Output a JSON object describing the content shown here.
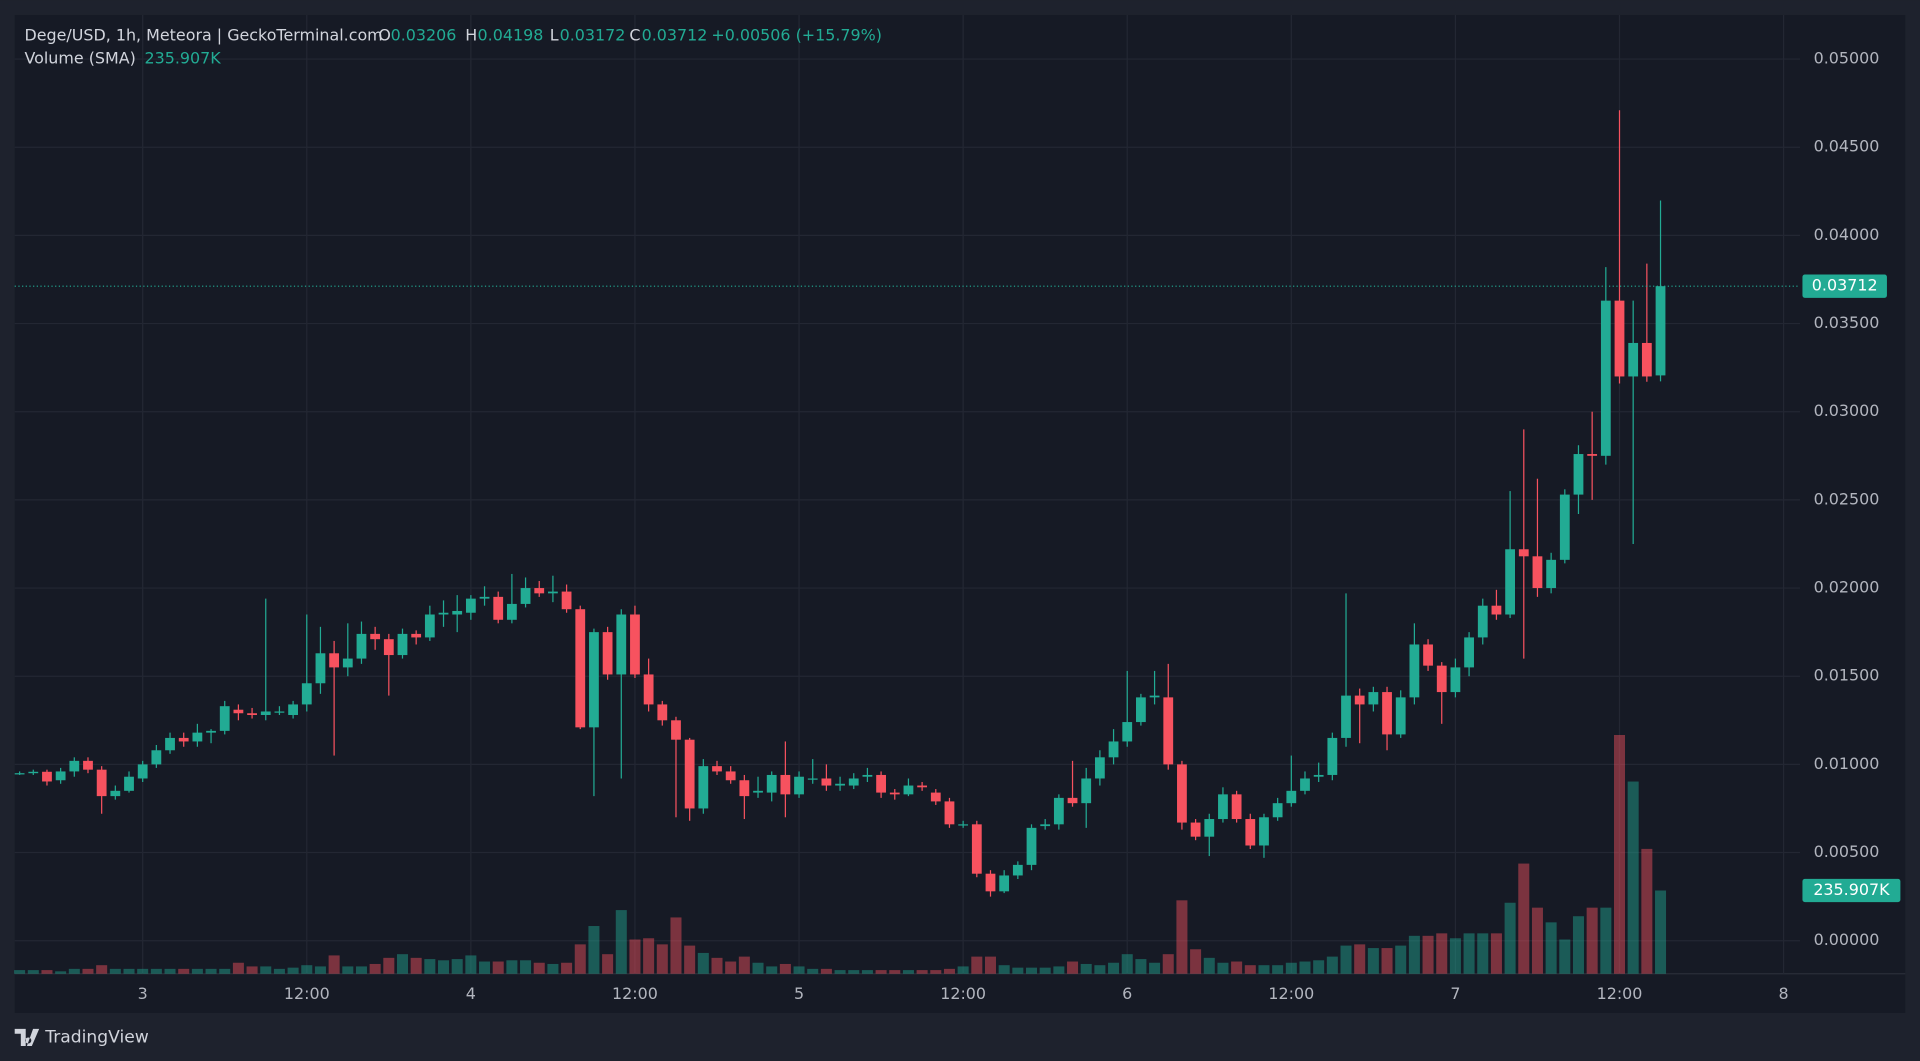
{
  "chart_data": {
    "type": "candlestick",
    "title": "Dege/USD, 1h, Meteora | GeckoTerminal.com",
    "open_letter": "O",
    "high_letter": "H",
    "low_letter": "L",
    "close_letter": "C",
    "change_label": "+0.00506 (+15.79%)",
    "volume_title": "Volume (SMA)",
    "last_volume_label": "235.907K",
    "brand": "TradingView",
    "up_color": "#22ab94",
    "down_color": "#f7525f",
    "grid": true,
    "ylim": [
      -0.001875,
      0.0525
    ],
    "yticks": [
      {
        "value": 0,
        "label": "0.00000"
      },
      {
        "value": 0.005,
        "label": "0.00500"
      },
      {
        "value": 0.01,
        "label": "0.01000"
      },
      {
        "value": 0.015,
        "label": "0.01500"
      },
      {
        "value": 0.02,
        "label": "0.02000"
      },
      {
        "value": 0.025,
        "label": "0.02500"
      },
      {
        "value": 0.03,
        "label": "0.03000"
      },
      {
        "value": 0.035,
        "label": "0.03500"
      },
      {
        "value": 0.04,
        "label": "0.04000"
      },
      {
        "value": 0.045,
        "label": "0.04500"
      },
      {
        "value": 0.05,
        "label": "0.05000"
      }
    ],
    "xlim": [
      -0.36,
      130.2
    ],
    "xticks": [
      {
        "value": 9,
        "label": "3"
      },
      {
        "value": 21,
        "label": "12:00"
      },
      {
        "value": 33,
        "label": "4"
      },
      {
        "value": 45,
        "label": "12:00"
      },
      {
        "value": 57,
        "label": "5"
      },
      {
        "value": 69,
        "label": "12:00"
      },
      {
        "value": 81,
        "label": "6"
      },
      {
        "value": 93,
        "label": "12:00"
      },
      {
        "value": 105,
        "label": "7"
      },
      {
        "value": 117,
        "label": "12:00"
      },
      {
        "value": 129,
        "label": "8"
      }
    ],
    "open": [
      0.0095,
      0.0095,
      0.00958,
      0.0091,
      0.0096,
      0.0102,
      0.0097,
      0.0082,
      0.0085,
      0.0092,
      0.01,
      0.0108,
      0.0115,
      0.0113,
      0.0118,
      0.0119,
      0.0131,
      0.0129,
      0.0128,
      0.013,
      0.0128,
      0.0134,
      0.0146,
      0.0163,
      0.0155,
      0.016,
      0.0174,
      0.0171,
      0.0162,
      0.0174,
      0.0172,
      0.0185,
      0.0185,
      0.0186,
      0.0194,
      0.0195,
      0.0182,
      0.0191,
      0.02,
      0.0197,
      0.0198,
      0.0188,
      0.0121,
      0.0175,
      0.0151,
      0.0185,
      0.0151,
      0.0134,
      0.0125,
      0.0114,
      0.0075,
      0.0099,
      0.0096,
      0.0091,
      0.0084,
      0.0084,
      0.0094,
      0.0083,
      0.0092,
      0.0092,
      0.0088,
      0.0088,
      0.0093,
      0.0094,
      0.0084,
      0.0083,
      0.0088,
      0.0084,
      0.0079,
      0.0066,
      0.0066,
      0.0038,
      0.0028,
      0.0037,
      0.0043,
      0.0065,
      0.0066,
      0.0081,
      0.0078,
      0.0092,
      0.0104,
      0.0113,
      0.0124,
      0.0138,
      0.0138,
      0.01,
      0.0067,
      0.0059,
      0.0069,
      0.0083,
      0.0069,
      0.0054,
      0.007,
      0.0078,
      0.0085,
      0.0093,
      0.0094,
      0.0115,
      0.0139,
      0.0134,
      0.0141,
      0.0117,
      0.0138,
      0.0168,
      0.0156,
      0.0141,
      0.0155,
      0.0172,
      0.019,
      0.0185,
      0.0222,
      0.0218,
      0.02,
      0.0216,
      0.0253,
      0.0276,
      0.0275,
      0.0363,
      0.032,
      0.0339,
      0.03206
    ],
    "high": [
      0.0096,
      0.0097,
      0.0097,
      0.0098,
      0.0104,
      0.0104,
      0.0099,
      0.0088,
      0.0096,
      0.0102,
      0.0111,
      0.0118,
      0.0118,
      0.0123,
      0.012,
      0.0136,
      0.0134,
      0.0132,
      0.0194,
      0.0133,
      0.0136,
      0.0185,
      0.0178,
      0.017,
      0.018,
      0.0181,
      0.0178,
      0.0174,
      0.0177,
      0.0176,
      0.019,
      0.0193,
      0.0196,
      0.0196,
      0.0201,
      0.0198,
      0.0208,
      0.0206,
      0.0204,
      0.0207,
      0.0202,
      0.019,
      0.0177,
      0.0178,
      0.0188,
      0.019,
      0.016,
      0.0136,
      0.0127,
      0.0115,
      0.0103,
      0.0102,
      0.0099,
      0.0094,
      0.0093,
      0.0096,
      0.0113,
      0.0096,
      0.0103,
      0.01,
      0.0093,
      0.0095,
      0.0098,
      0.0096,
      0.0086,
      0.0092,
      0.009,
      0.0086,
      0.0081,
      0.0068,
      0.0068,
      0.004,
      0.004,
      0.0045,
      0.0066,
      0.0069,
      0.0083,
      0.0102,
      0.0098,
      0.0108,
      0.012,
      0.0153,
      0.014,
      0.0153,
      0.0157,
      0.0102,
      0.0069,
      0.0072,
      0.0087,
      0.0085,
      0.0072,
      0.0072,
      0.0081,
      0.0105,
      0.0096,
      0.0101,
      0.0118,
      0.0197,
      0.0143,
      0.0144,
      0.0144,
      0.0142,
      0.018,
      0.0171,
      0.0158,
      0.016,
      0.0175,
      0.0194,
      0.0199,
      0.0255,
      0.029,
      0.0262,
      0.022,
      0.0256,
      0.0281,
      0.03,
      0.0382,
      0.0471,
      0.0363,
      0.0384,
      0.04198
    ],
    "low": [
      0.0094,
      0.0094,
      0.0088,
      0.0089,
      0.0093,
      0.0095,
      0.0072,
      0.008,
      0.0084,
      0.009,
      0.0098,
      0.0106,
      0.011,
      0.011,
      0.0112,
      0.0117,
      0.0125,
      0.0126,
      0.0125,
      0.0128,
      0.0126,
      0.013,
      0.014,
      0.0105,
      0.015,
      0.0157,
      0.0165,
      0.0139,
      0.016,
      0.0168,
      0.017,
      0.0178,
      0.0175,
      0.0182,
      0.019,
      0.018,
      0.018,
      0.0189,
      0.0195,
      0.0192,
      0.0186,
      0.012,
      0.0082,
      0.0148,
      0.0092,
      0.0149,
      0.013,
      0.0122,
      0.007,
      0.0068,
      0.0072,
      0.0094,
      0.0089,
      0.0069,
      0.0081,
      0.0079,
      0.007,
      0.0081,
      0.0089,
      0.0085,
      0.0085,
      0.0086,
      0.009,
      0.0081,
      0.008,
      0.0082,
      0.0085,
      0.0077,
      0.0064,
      0.0064,
      0.0036,
      0.0025,
      0.0027,
      0.0035,
      0.004,
      0.0063,
      0.0063,
      0.0076,
      0.0064,
      0.0088,
      0.01,
      0.011,
      0.0122,
      0.0134,
      0.0097,
      0.0063,
      0.0057,
      0.0048,
      0.0067,
      0.0067,
      0.0052,
      0.0047,
      0.0068,
      0.0076,
      0.0083,
      0.009,
      0.0091,
      0.011,
      0.0112,
      0.013,
      0.0108,
      0.0115,
      0.0134,
      0.0153,
      0.0123,
      0.0138,
      0.015,
      0.0168,
      0.0182,
      0.0183,
      0.016,
      0.0195,
      0.0197,
      0.0214,
      0.0242,
      0.025,
      0.027,
      0.0316,
      0.0225,
      0.0317,
      0.03172
    ],
    "close": [
      0.0095,
      0.00958,
      0.00903,
      0.0096,
      0.0102,
      0.0097,
      0.0082,
      0.0085,
      0.0093,
      0.01,
      0.0108,
      0.0115,
      0.0113,
      0.0118,
      0.0119,
      0.0133,
      0.0129,
      0.0128,
      0.013,
      0.013,
      0.0134,
      0.0146,
      0.0163,
      0.0155,
      0.016,
      0.0174,
      0.0171,
      0.0162,
      0.0174,
      0.0172,
      0.0185,
      0.0186,
      0.0187,
      0.0194,
      0.0195,
      0.0182,
      0.0191,
      0.02,
      0.0197,
      0.0198,
      0.0188,
      0.0121,
      0.0175,
      0.0151,
      0.0185,
      0.0151,
      0.0134,
      0.0125,
      0.0114,
      0.0075,
      0.0099,
      0.0096,
      0.0091,
      0.0082,
      0.0085,
      0.0094,
      0.0083,
      0.0093,
      0.0092,
      0.0088,
      0.0089,
      0.0092,
      0.0094,
      0.0084,
      0.0083,
      0.0088,
      0.0087,
      0.0079,
      0.0066,
      0.0066,
      0.0038,
      0.0028,
      0.0037,
      0.0043,
      0.0064,
      0.0066,
      0.0081,
      0.0078,
      0.0092,
      0.0104,
      0.0113,
      0.0124,
      0.0138,
      0.0139,
      0.01,
      0.0067,
      0.0059,
      0.0069,
      0.0083,
      0.0069,
      0.0054,
      0.007,
      0.0078,
      0.0085,
      0.0092,
      0.0094,
      0.0115,
      0.0139,
      0.0134,
      0.0141,
      0.0117,
      0.0138,
      0.0168,
      0.0156,
      0.0141,
      0.0155,
      0.0172,
      0.019,
      0.0185,
      0.0222,
      0.0218,
      0.02,
      0.0216,
      0.0253,
      0.0276,
      0.0275,
      0.0363,
      0.032,
      0.0339,
      0.032,
      0.03712
    ],
    "volume": [
      10400,
      10400,
      10400,
      6900,
      13900,
      13900,
      24300,
      13900,
      13900,
      13900,
      13900,
      13900,
      13900,
      13900,
      13900,
      13900,
      31200,
      20800,
      20800,
      13900,
      17300,
      24300,
      20800,
      52000,
      20800,
      20800,
      27800,
      45100,
      55500,
      45100,
      41600,
      38200,
      41600,
      52000,
      34700,
      34700,
      38200,
      38200,
      31200,
      27800,
      31200,
      83300,
      135300,
      55500,
      180400,
      97100,
      100600,
      83300,
      159600,
      79800,
      59000,
      45100,
      34700,
      48600,
      31200,
      20800,
      27800,
      20800,
      13900,
      13900,
      10400,
      10400,
      10400,
      10400,
      10400,
      10400,
      10400,
      10400,
      13900,
      20800,
      48600,
      48600,
      24300,
      17300,
      17300,
      17300,
      20800,
      34700,
      27800,
      24300,
      31200,
      55500,
      41600,
      31200,
      55500,
      208100,
      69400,
      45100,
      31200,
      34700,
      24300,
      24300,
      24300,
      31200,
      34700,
      38200,
      48600,
      79800,
      83300,
      72800,
      72800,
      79800,
      107500,
      107500,
      114500,
      100600,
      114500,
      114500,
      114500,
      201200,
      312200,
      187300,
      145700,
      97100,
      163000,
      187300,
      187300,
      676500,
      544600,
      353800,
      235907
    ]
  }
}
